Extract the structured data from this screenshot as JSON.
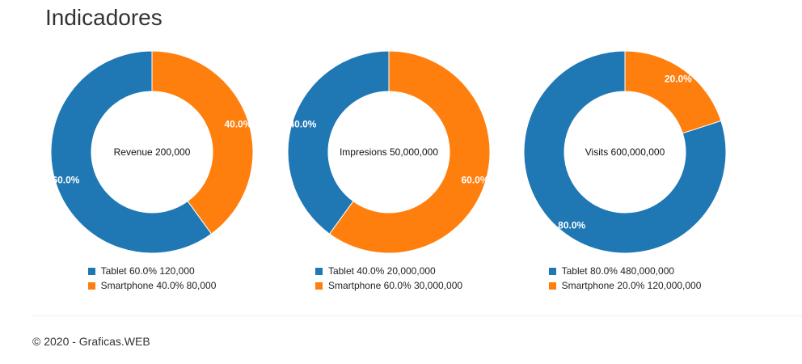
{
  "page": {
    "title": "Indicadores"
  },
  "footer": {
    "text": "© 2020 - Graficas.WEB"
  },
  "colors": {
    "tablet": "#1f77b4",
    "smartphone": "#ff7f0e",
    "label_text": "#ffffff",
    "center_text": "#111111"
  },
  "chart_data": [
    {
      "type": "pie",
      "variant": "donut",
      "center_label": "Revenue 200,000",
      "slices": [
        {
          "name": "Tablet",
          "value": 120000,
          "percent": 60.0,
          "percent_label": "60.0%",
          "legend": "Tablet 60.0% 120,000",
          "color": "#1f77b4"
        },
        {
          "name": "Smartphone",
          "value": 80000,
          "percent": 40.0,
          "percent_label": "40.0%",
          "legend": "Smartphone 40.0% 80,000",
          "color": "#ff7f0e"
        }
      ]
    },
    {
      "type": "pie",
      "variant": "donut",
      "center_label": "Impresions 50,000,000",
      "slices": [
        {
          "name": "Tablet",
          "value": 20000000,
          "percent": 40.0,
          "percent_label": "40.0%",
          "legend": "Tablet 40.0% 20,000,000",
          "color": "#1f77b4"
        },
        {
          "name": "Smartphone",
          "value": 30000000,
          "percent": 60.0,
          "percent_label": "60.0%",
          "legend": "Smartphone 60.0% 30,000,000",
          "color": "#ff7f0e"
        }
      ]
    },
    {
      "type": "pie",
      "variant": "donut",
      "center_label": "Visits 600,000,000",
      "slices": [
        {
          "name": "Tablet",
          "value": 480000000,
          "percent": 80.0,
          "percent_label": "80.0%",
          "legend": "Tablet 80.0% 480,000,000",
          "color": "#1f77b4"
        },
        {
          "name": "Smartphone",
          "value": 120000000,
          "percent": 20.0,
          "percent_label": "20.0%",
          "legend": "Smartphone 20.0% 120,000,000",
          "color": "#ff7f0e"
        }
      ]
    }
  ]
}
